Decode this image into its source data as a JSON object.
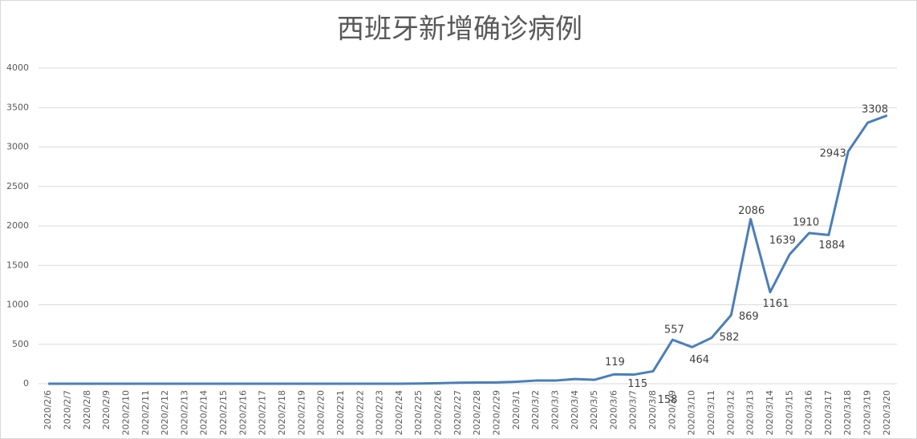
{
  "chart_data": {
    "type": "line",
    "title": "西班牙新增确诊病例",
    "categories": [
      "2020/2/6",
      "2020/2/7",
      "2020/2/8",
      "2020/2/9",
      "2020/2/10",
      "2020/2/11",
      "2020/2/12",
      "2020/2/13",
      "2020/2/14",
      "2020/2/15",
      "2020/2/16",
      "2020/2/17",
      "2020/2/18",
      "2020/2/19",
      "2020/2/20",
      "2020/2/21",
      "2020/2/22",
      "2020/2/23",
      "2020/2/24",
      "2020/2/25",
      "2020/2/26",
      "2020/2/27",
      "2020/2/28",
      "2020/2/29",
      "2020/3/1",
      "2020/3/2",
      "2020/3/3",
      "2020/3/4",
      "2020/3/5",
      "2020/3/6",
      "2020/3/7",
      "2020/3/8",
      "2020/3/9",
      "2020/3/10",
      "2020/3/11",
      "2020/3/12",
      "2020/3/13",
      "2020/3/14",
      "2020/3/15",
      "2020/3/16",
      "2020/3/17",
      "2020/3/18",
      "2020/3/19",
      "2020/3/20"
    ],
    "series": [
      {
        "name": "西班牙新增确诊病例",
        "color": "#4a7ebb",
        "values": [
          0,
          0,
          0,
          0,
          0,
          0,
          0,
          0,
          0,
          0,
          0,
          0,
          0,
          0,
          0,
          0,
          0,
          0,
          0,
          2,
          6,
          13,
          15,
          17,
          25,
          40,
          40,
          60,
          50,
          119,
          115,
          158,
          557,
          464,
          582,
          869,
          2086,
          1161,
          1639,
          1910,
          1884,
          2943,
          3308,
          3400
        ],
        "value_labels": [
          null,
          null,
          null,
          null,
          null,
          null,
          null,
          null,
          null,
          null,
          null,
          null,
          null,
          null,
          null,
          null,
          null,
          null,
          null,
          null,
          null,
          null,
          null,
          null,
          null,
          null,
          null,
          null,
          null,
          "119",
          "115",
          "158",
          "557",
          "464",
          "582",
          "869",
          "2086",
          "1161",
          "1639",
          "1910",
          "1884",
          "2943",
          "3308",
          null
        ]
      }
    ],
    "ylim": [
      0,
      4000
    ],
    "yticks": [
      0,
      500,
      1000,
      1500,
      2000,
      2500,
      3000,
      3500,
      4000
    ],
    "grid": true
  }
}
